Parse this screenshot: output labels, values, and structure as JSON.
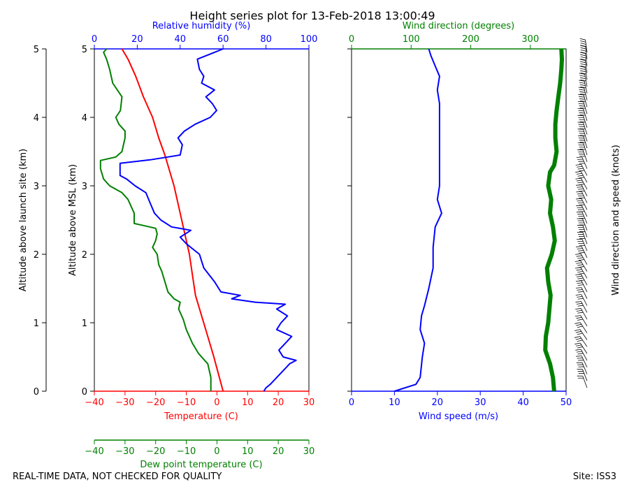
{
  "chart_data": {
    "type": "line",
    "title": "Height series plot for 13-Feb-2018 13:00:49",
    "footer_left": "REAL-TIME DATA, NOT CHECKED FOR QUALITY",
    "footer_right": "Site: ISS3",
    "colors": {
      "temperature": "#ff0000",
      "dewpoint": "#008000",
      "rh": "#0000ff",
      "wind_speed": "#0000ff",
      "wind_dir": "#008000",
      "axis": "#000000"
    },
    "left_panel": {
      "ylabel_outer": "Altitude above launch site (km)",
      "ylabel_inner": "Altitude above MSL (km)",
      "ylim": [
        0,
        5
      ],
      "yticks": [
        "0",
        "1",
        "2",
        "3",
        "4",
        "5"
      ],
      "x_temperature": {
        "label": "Temperature (C)",
        "lim": [
          -40,
          30
        ],
        "ticks": [
          "−40",
          "−30",
          "−20",
          "−10",
          "0",
          "10",
          "20",
          "30"
        ]
      },
      "x_rh": {
        "label": "Relative humidity (%)",
        "lim": [
          0,
          100
        ],
        "ticks": [
          "0",
          "20",
          "40",
          "60",
          "80",
          "100"
        ]
      },
      "x_dewpoint": {
        "label": "Dew point temperature (C)",
        "lim": [
          -40,
          30
        ],
        "ticks": [
          "−40",
          "−30",
          "−20",
          "−10",
          "0",
          "10",
          "20",
          "30"
        ]
      },
      "series": [
        {
          "name": "Temperature",
          "color": "#ff0000",
          "points": [
            [
              2,
              0
            ],
            [
              0.5,
              0.25
            ],
            [
              -1,
              0.5
            ],
            [
              -3,
              0.8
            ],
            [
              -5,
              1.1
            ],
            [
              -7,
              1.4
            ],
            [
              -8,
              1.7
            ],
            [
              -9,
              2.0
            ],
            [
              -10.5,
              2.3
            ],
            [
              -12,
              2.6
            ],
            [
              -14,
              3.0
            ],
            [
              -16,
              3.3
            ],
            [
              -17,
              3.45
            ],
            [
              -19,
              3.7
            ],
            [
              -21,
              4.0
            ],
            [
              -24,
              4.3
            ],
            [
              -26.5,
              4.6
            ],
            [
              -29,
              4.85
            ],
            [
              -31,
              5.0
            ]
          ]
        },
        {
          "name": "Dew point",
          "color": "#008000",
          "points": [
            [
              -2,
              0
            ],
            [
              -2,
              0.2
            ],
            [
              -3,
              0.4
            ],
            [
              -6,
              0.55
            ],
            [
              -8,
              0.7
            ],
            [
              -10,
              0.9
            ],
            [
              -11,
              1.05
            ],
            [
              -12.5,
              1.2
            ],
            [
              -12,
              1.3
            ],
            [
              -14,
              1.35
            ],
            [
              -16,
              1.45
            ],
            [
              -17,
              1.6
            ],
            [
              -18,
              1.75
            ],
            [
              -19,
              1.85
            ],
            [
              -19.5,
              2.0
            ],
            [
              -21,
              2.1
            ],
            [
              -20,
              2.2
            ],
            [
              -19.5,
              2.3
            ],
            [
              -20,
              2.38
            ],
            [
              -24,
              2.42
            ],
            [
              -27,
              2.45
            ],
            [
              -27,
              2.6
            ],
            [
              -29,
              2.8
            ],
            [
              -31,
              2.9
            ],
            [
              -35,
              3.0
            ],
            [
              -37,
              3.1
            ],
            [
              -38,
              3.25
            ],
            [
              -38,
              3.37
            ],
            [
              -33,
              3.42
            ],
            [
              -31,
              3.5
            ],
            [
              -30,
              3.7
            ],
            [
              -30,
              3.8
            ],
            [
              -32,
              3.9
            ],
            [
              -33,
              4.0
            ],
            [
              -31.5,
              4.1
            ],
            [
              -31,
              4.3
            ],
            [
              -34,
              4.5
            ],
            [
              -35,
              4.7
            ],
            [
              -36,
              4.85
            ],
            [
              -37,
              4.95
            ],
            [
              -36,
              5.0
            ]
          ]
        },
        {
          "name": "Relative humidity",
          "color": "#0000ff",
          "axis": "rh",
          "points": [
            [
              79,
              0
            ],
            [
              80,
              0.05
            ],
            [
              82,
              0.1
            ],
            [
              85,
              0.2
            ],
            [
              88,
              0.3
            ],
            [
              91,
              0.4
            ],
            [
              94,
              0.45
            ],
            [
              88,
              0.5
            ],
            [
              86,
              0.6
            ],
            [
              89,
              0.7
            ],
            [
              92,
              0.8
            ],
            [
              85,
              0.9
            ],
            [
              87,
              1.0
            ],
            [
              90,
              1.1
            ],
            [
              85,
              1.2
            ],
            [
              89,
              1.27
            ],
            [
              75,
              1.3
            ],
            [
              64,
              1.35
            ],
            [
              68,
              1.4
            ],
            [
              59,
              1.45
            ],
            [
              56,
              1.6
            ],
            [
              51,
              1.8
            ],
            [
              50,
              1.9
            ],
            [
              49,
              2.0
            ],
            [
              47,
              2.05
            ],
            [
              43,
              2.15
            ],
            [
              40,
              2.25
            ],
            [
              45,
              2.35
            ],
            [
              36,
              2.4
            ],
            [
              31,
              2.5
            ],
            [
              28,
              2.6
            ],
            [
              26,
              2.75
            ],
            [
              24,
              2.9
            ],
            [
              19,
              3.0
            ],
            [
              15,
              3.1
            ],
            [
              12,
              3.15
            ],
            [
              12,
              3.33
            ],
            [
              26,
              3.38
            ],
            [
              40,
              3.45
            ],
            [
              41,
              3.6
            ],
            [
              39,
              3.7
            ],
            [
              42,
              3.8
            ],
            [
              47,
              3.9
            ],
            [
              54,
              4.0
            ],
            [
              57,
              4.1
            ],
            [
              55,
              4.2
            ],
            [
              52,
              4.3
            ],
            [
              56,
              4.4
            ],
            [
              50,
              4.5
            ],
            [
              51,
              4.6
            ],
            [
              49,
              4.7
            ],
            [
              48,
              4.85
            ],
            [
              56,
              4.95
            ],
            [
              60,
              5.0
            ]
          ]
        }
      ]
    },
    "right_panel": {
      "x_speed": {
        "label": "Wind speed (m/s)",
        "lim": [
          0,
          50
        ],
        "ticks": [
          "0",
          "10",
          "20",
          "30",
          "40",
          "50"
        ]
      },
      "x_dir": {
        "label": "Wind direction (degrees)",
        "lim": [
          0,
          360
        ],
        "ticks": [
          "0",
          "100",
          "200",
          "300"
        ]
      },
      "barbs_label": "Wind direction and speed (knots)",
      "series": [
        {
          "name": "Wind speed",
          "color": "#0000ff",
          "points": [
            [
              10,
              0
            ],
            [
              15,
              0.1
            ],
            [
              16,
              0.2
            ],
            [
              16.5,
              0.5
            ],
            [
              17,
              0.7
            ],
            [
              16,
              0.9
            ],
            [
              16.3,
              1.1
            ],
            [
              17,
              1.25
            ],
            [
              18,
              1.5
            ],
            [
              19,
              1.8
            ],
            [
              19,
              2.1
            ],
            [
              19.5,
              2.4
            ],
            [
              21,
              2.6
            ],
            [
              20,
              2.8
            ],
            [
              20.5,
              3.0
            ],
            [
              20.5,
              3.3
            ],
            [
              20.5,
              3.6
            ],
            [
              20.5,
              3.9
            ],
            [
              20.5,
              4.2
            ],
            [
              20,
              4.4
            ],
            [
              20.5,
              4.6
            ],
            [
              19.5,
              4.75
            ],
            [
              18.5,
              4.9
            ],
            [
              18,
              5.0
            ]
          ]
        },
        {
          "name": "Wind direction",
          "color": "#008000",
          "axis": "dir",
          "points": [
            [
              340,
              0
            ],
            [
              338,
              0.2
            ],
            [
              333,
              0.4
            ],
            [
              325,
              0.6
            ],
            [
              326,
              0.8
            ],
            [
              330,
              1.0
            ],
            [
              332,
              1.2
            ],
            [
              334,
              1.4
            ],
            [
              330,
              1.6
            ],
            [
              328,
              1.8
            ],
            [
              336,
              2.0
            ],
            [
              341,
              2.2
            ],
            [
              338,
              2.4
            ],
            [
              333,
              2.6
            ],
            [
              335,
              2.8
            ],
            [
              330,
              3.0
            ],
            [
              333,
              3.2
            ],
            [
              340,
              3.3
            ],
            [
              344,
              3.5
            ],
            [
              342,
              3.7
            ],
            [
              342,
              3.9
            ],
            [
              344,
              4.1
            ],
            [
              347,
              4.3
            ],
            [
              350,
              4.5
            ],
            [
              352,
              4.7
            ],
            [
              353,
              4.85
            ],
            [
              352,
              5.0
            ]
          ]
        }
      ]
    }
  }
}
